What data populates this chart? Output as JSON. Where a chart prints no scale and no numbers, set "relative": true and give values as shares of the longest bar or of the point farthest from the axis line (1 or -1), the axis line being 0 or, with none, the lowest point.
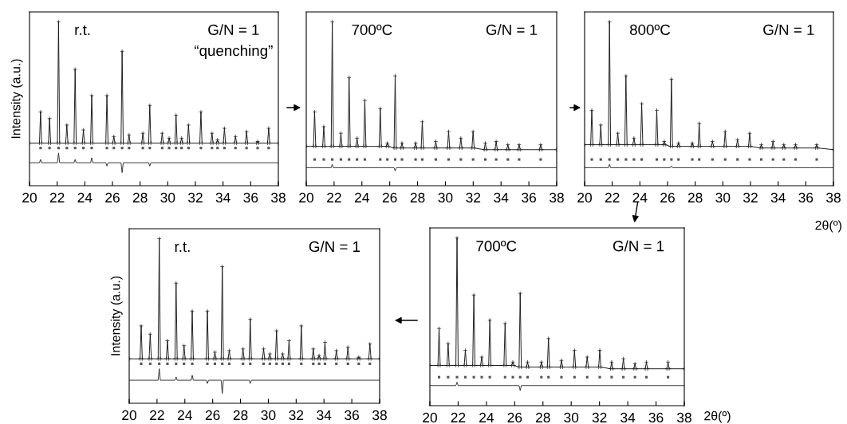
{
  "chart_data": [
    {
      "type": "line",
      "relative": true,
      "ylabel": "Intensity (a.u.)",
      "xlim": [
        20,
        38
      ],
      "xticks": [
        20,
        22,
        24,
        26,
        28,
        30,
        32,
        34,
        36,
        38
      ],
      "tick_labels": "x",
      "annotations": [
        "r.t.",
        "G/N = 1",
        "“quenching”"
      ],
      "series": [
        {
          "type": "line",
          "color": "#1a1a1a",
          "marker": "cross",
          "x": [
            20,
            20.72,
            20.8,
            20.88,
            21.37,
            21.45,
            21.53,
            22.02,
            22.1,
            22.18,
            22.62,
            22.7,
            22.78,
            23.22,
            23.3,
            23.38,
            23.82,
            23.9,
            23.98,
            24.42,
            24.5,
            24.58,
            25.52,
            25.6,
            25.68,
            26.02,
            26.1,
            26.18,
            26.62,
            26.7,
            26.78,
            27.12,
            27.2,
            27.28,
            28.12,
            28.2,
            28.28,
            28.62,
            28.7,
            28.78,
            29.52,
            29.6,
            29.68,
            30.02,
            30.1,
            30.18,
            30.52,
            30.6,
            30.68,
            30.92,
            31.0,
            31.08,
            31.42,
            31.5,
            31.58,
            32.32,
            32.4,
            32.48,
            33.12,
            33.2,
            33.28,
            33.52,
            33.6,
            33.68,
            34.02,
            34.1,
            34.18,
            34.82,
            34.9,
            34.98,
            35.62,
            35.7,
            35.78,
            36.42,
            36.5,
            36.58,
            37.22,
            37.3,
            37.38,
            38
          ],
          "values": [
            0.26,
            0.26,
            0.45,
            0.26,
            0.26,
            0.41,
            0.26,
            0.26,
            1.0,
            0.26,
            0.26,
            0.37,
            0.26,
            0.26,
            0.71,
            0.26,
            0.26,
            0.34,
            0.26,
            0.26,
            0.55,
            0.26,
            0.26,
            0.55,
            0.26,
            0.26,
            0.3,
            0.26,
            0.26,
            0.82,
            0.26,
            0.26,
            0.31,
            0.26,
            0.26,
            0.32,
            0.26,
            0.26,
            0.49,
            0.26,
            0.26,
            0.32,
            0.26,
            0.26,
            0.29,
            0.26,
            0.26,
            0.43,
            0.26,
            0.26,
            0.29,
            0.26,
            0.26,
            0.37,
            0.26,
            0.26,
            0.45,
            0.26,
            0.26,
            0.32,
            0.26,
            0.26,
            0.28,
            0.26,
            0.26,
            0.35,
            0.26,
            0.26,
            0.3,
            0.26,
            0.26,
            0.33,
            0.26,
            0.26,
            0.27,
            0.26,
            0.26,
            0.35,
            0.26,
            0.26
          ]
        },
        {
          "type": "line",
          "color": "#333333",
          "x": [
            20,
            20.72,
            20.8,
            20.88,
            22.02,
            22.1,
            22.18,
            23.22,
            23.3,
            23.38,
            24.42,
            24.5,
            24.58,
            25.52,
            25.6,
            25.68,
            26.62,
            26.7,
            26.78,
            28.62,
            28.7,
            28.78,
            38
          ],
          "values": [
            0.14,
            0.14,
            0.16,
            0.14,
            0.14,
            0.2,
            0.14,
            0.14,
            0.16,
            0.14,
            0.14,
            0.17,
            0.14,
            0.14,
            0.12,
            0.14,
            0.14,
            0.08,
            0.14,
            0.14,
            0.12,
            0.14,
            0.14
          ]
        },
        {
          "type": "scatter",
          "color": "#555555",
          "marker": "square",
          "x": [
            20.8,
            21.45,
            22.1,
            22.7,
            23.3,
            23.9,
            24.5,
            25.6,
            26.1,
            26.7,
            27.2,
            28.2,
            28.7,
            29.6,
            30.1,
            30.6,
            31.0,
            31.5,
            32.4,
            33.2,
            33.6,
            34.1,
            34.9,
            35.7,
            36.5,
            37.3
          ],
          "values": [
            0.23,
            0.23,
            0.23,
            0.23,
            0.23,
            0.23,
            0.23,
            0.23,
            0.23,
            0.23,
            0.23,
            0.23,
            0.23,
            0.23,
            0.23,
            0.23,
            0.23,
            0.23,
            0.23,
            0.23,
            0.23,
            0.23,
            0.23,
            0.23,
            0.23,
            0.23
          ]
        }
      ]
    },
    {
      "type": "line",
      "relative": true,
      "xlim": [
        20,
        38
      ],
      "xticks": [
        20,
        22,
        24,
        26,
        28,
        30,
        32,
        34,
        36,
        38
      ],
      "tick_labels": "x",
      "annotations": [
        "700ºC",
        "G/N = 1"
      ],
      "series": [
        {
          "type": "line",
          "color": "#1a1a1a",
          "marker": "cross",
          "x": [
            20,
            20.52,
            20.6,
            20.68,
            21.18,
            21.26,
            21.34,
            21.79,
            21.87,
            21.95,
            22.41,
            22.49,
            22.57,
            23.0,
            23.08,
            23.16,
            23.57,
            23.65,
            23.73,
            24.13,
            24.21,
            24.29,
            25.24,
            25.32,
            25.4,
            25.75,
            25.83,
            25.91,
            26.31,
            26.39,
            26.47,
            26.8,
            26.88,
            26.96,
            27.78,
            27.86,
            27.94,
            28.26,
            28.34,
            28.42,
            29.23,
            29.31,
            29.39,
            30.15,
            30.23,
            30.31,
            31.03,
            31.11,
            31.19,
            31.91,
            31.99,
            32.07,
            32.79,
            32.87,
            32.95,
            33.57,
            33.65,
            33.73,
            34.41,
            34.49,
            34.57,
            35.22,
            35.3,
            35.38,
            36.77,
            36.85,
            36.93,
            38
          ],
          "values": [
            0.24,
            0.24,
            0.45,
            0.24,
            0.24,
            0.36,
            0.24,
            0.24,
            1.0,
            0.24,
            0.24,
            0.32,
            0.24,
            0.24,
            0.66,
            0.24,
            0.24,
            0.29,
            0.24,
            0.24,
            0.52,
            0.24,
            0.24,
            0.47,
            0.24,
            0.24,
            0.26,
            0.24,
            0.23,
            0.67,
            0.23,
            0.23,
            0.26,
            0.23,
            0.23,
            0.26,
            0.23,
            0.23,
            0.39,
            0.23,
            0.23,
            0.27,
            0.23,
            0.23,
            0.33,
            0.23,
            0.23,
            0.29,
            0.23,
            0.23,
            0.33,
            0.23,
            0.22,
            0.26,
            0.22,
            0.22,
            0.27,
            0.22,
            0.22,
            0.25,
            0.22,
            0.22,
            0.25,
            0.22,
            0.22,
            0.25,
            0.22,
            0.22
          ]
        },
        {
          "type": "line",
          "color": "#333333",
          "x": [
            20,
            21.79,
            21.87,
            21.95,
            26.31,
            26.39,
            26.47,
            38
          ],
          "values": [
            0.11,
            0.11,
            0.13,
            0.11,
            0.11,
            0.09,
            0.11,
            0.11
          ]
        },
        {
          "type": "scatter",
          "color": "#555555",
          "marker": "square",
          "x": [
            20.6,
            21.26,
            21.87,
            22.49,
            23.08,
            23.65,
            24.21,
            25.32,
            25.83,
            26.39,
            26.88,
            27.86,
            28.34,
            29.31,
            30.23,
            31.11,
            31.99,
            32.87,
            33.65,
            34.49,
            35.3,
            36.85
          ],
          "values": [
            0.16,
            0.16,
            0.16,
            0.16,
            0.16,
            0.16,
            0.16,
            0.16,
            0.16,
            0.16,
            0.16,
            0.16,
            0.16,
            0.16,
            0.16,
            0.16,
            0.16,
            0.16,
            0.16,
            0.16,
            0.16,
            0.16
          ]
        }
      ]
    },
    {
      "type": "line",
      "relative": true,
      "xlabel": "2θ(º)",
      "xlim": [
        20,
        38
      ],
      "xticks": [
        20,
        22,
        24,
        26,
        28,
        30,
        32,
        34,
        36,
        38
      ],
      "tick_labels": "x",
      "annotations": [
        "800ºC",
        "G/N = 1"
      ],
      "series": [
        {
          "type": "line",
          "color": "#1a1a1a",
          "marker": "cross",
          "x": [
            20,
            20.44,
            20.52,
            20.6,
            21.09,
            21.17,
            21.25,
            21.72,
            21.8,
            21.88,
            22.32,
            22.4,
            22.48,
            22.91,
            22.99,
            23.07,
            23.49,
            23.57,
            23.65,
            24.05,
            24.13,
            24.21,
            25.14,
            25.22,
            25.3,
            25.68,
            25.76,
            25.84,
            26.2,
            26.28,
            26.36,
            26.71,
            26.79,
            26.87,
            27.71,
            27.79,
            27.87,
            28.21,
            28.29,
            28.37,
            29.17,
            29.25,
            29.33,
            30.09,
            30.17,
            30.25,
            30.98,
            31.06,
            31.14,
            31.86,
            31.94,
            32.02,
            32.7,
            32.78,
            32.86,
            33.55,
            33.63,
            33.71,
            34.33,
            34.41,
            34.49,
            35.18,
            35.26,
            35.34,
            36.71,
            36.79,
            36.87,
            38
          ],
          "values": [
            0.25,
            0.25,
            0.46,
            0.25,
            0.25,
            0.37,
            0.25,
            0.25,
            1.0,
            0.25,
            0.25,
            0.32,
            0.25,
            0.25,
            0.67,
            0.25,
            0.25,
            0.29,
            0.25,
            0.25,
            0.5,
            0.25,
            0.25,
            0.46,
            0.25,
            0.25,
            0.27,
            0.25,
            0.24,
            0.65,
            0.24,
            0.24,
            0.26,
            0.24,
            0.24,
            0.26,
            0.24,
            0.24,
            0.38,
            0.24,
            0.24,
            0.27,
            0.24,
            0.24,
            0.33,
            0.24,
            0.24,
            0.28,
            0.24,
            0.24,
            0.32,
            0.24,
            0.23,
            0.25,
            0.23,
            0.23,
            0.27,
            0.23,
            0.23,
            0.25,
            0.23,
            0.23,
            0.25,
            0.23,
            0.23,
            0.25,
            0.23,
            0.22
          ]
        },
        {
          "type": "line",
          "color": "#333333",
          "x": [
            20,
            21.72,
            21.8,
            21.88,
            26.2,
            26.28,
            26.36,
            38
          ],
          "values": [
            0.11,
            0.11,
            0.13,
            0.11,
            0.11,
            0.12,
            0.11,
            0.11
          ]
        },
        {
          "type": "scatter",
          "color": "#555555",
          "marker": "square",
          "x": [
            20.52,
            21.17,
            21.8,
            22.4,
            22.99,
            23.57,
            24.13,
            25.22,
            25.76,
            26.28,
            26.79,
            27.79,
            28.29,
            29.25,
            30.17,
            31.06,
            31.94,
            32.78,
            33.63,
            34.41,
            35.26,
            36.79
          ],
          "values": [
            0.16,
            0.16,
            0.16,
            0.16,
            0.16,
            0.16,
            0.16,
            0.16,
            0.16,
            0.16,
            0.16,
            0.16,
            0.16,
            0.16,
            0.16,
            0.16,
            0.16,
            0.16,
            0.16,
            0.16,
            0.16,
            0.16
          ]
        }
      ]
    },
    {
      "type": "line",
      "relative": true,
      "ylabel": "Intensity (a.u.)",
      "xlim": [
        20,
        38
      ],
      "xticks": [
        20,
        22,
        24,
        26,
        28,
        30,
        32,
        34,
        36,
        38
      ],
      "tick_labels": "x",
      "annotations": [
        "r.t.",
        "G/N = 1"
      ],
      "series": [
        {
          "type": "line",
          "color": "#1a1a1a",
          "marker": "cross",
          "x": [
            20,
            20.78,
            20.86,
            20.94,
            21.43,
            21.51,
            21.59,
            22.08,
            22.16,
            22.24,
            22.67,
            22.75,
            22.83,
            23.29,
            23.37,
            23.45,
            23.86,
            23.94,
            24.02,
            24.45,
            24.53,
            24.61,
            25.54,
            25.62,
            25.7,
            26.08,
            26.16,
            26.24,
            26.61,
            26.69,
            26.77,
            27.11,
            27.19,
            27.27,
            28.1,
            28.18,
            28.26,
            28.62,
            28.7,
            28.78,
            29.58,
            29.66,
            29.74,
            30.03,
            30.11,
            30.19,
            30.51,
            30.59,
            30.67,
            30.95,
            31.03,
            31.11,
            31.41,
            31.49,
            31.57,
            32.29,
            32.37,
            32.45,
            33.15,
            33.23,
            33.31,
            33.57,
            33.65,
            33.73,
            33.99,
            34.07,
            34.15,
            34.81,
            34.89,
            34.97,
            35.64,
            35.72,
            35.8,
            36.42,
            36.5,
            36.58,
            37.22,
            37.3,
            37.38,
            38
          ],
          "values": [
            0.27,
            0.27,
            0.47,
            0.27,
            0.27,
            0.42,
            0.27,
            0.27,
            1.0,
            0.27,
            0.27,
            0.38,
            0.27,
            0.27,
            0.73,
            0.27,
            0.27,
            0.35,
            0.27,
            0.27,
            0.56,
            0.27,
            0.27,
            0.56,
            0.27,
            0.27,
            0.31,
            0.27,
            0.27,
            0.83,
            0.27,
            0.27,
            0.32,
            0.27,
            0.27,
            0.33,
            0.27,
            0.27,
            0.51,
            0.27,
            0.27,
            0.33,
            0.27,
            0.27,
            0.3,
            0.27,
            0.27,
            0.44,
            0.27,
            0.27,
            0.3,
            0.27,
            0.27,
            0.38,
            0.27,
            0.27,
            0.47,
            0.27,
            0.27,
            0.33,
            0.27,
            0.27,
            0.29,
            0.27,
            0.27,
            0.37,
            0.27,
            0.27,
            0.32,
            0.27,
            0.27,
            0.34,
            0.27,
            0.27,
            0.28,
            0.27,
            0.27,
            0.36,
            0.27,
            0.27
          ]
        },
        {
          "type": "line",
          "color": "#333333",
          "x": [
            20,
            22.08,
            22.16,
            22.24,
            23.29,
            23.37,
            23.45,
            24.45,
            24.53,
            24.61,
            25.54,
            25.62,
            25.7,
            26.61,
            26.69,
            26.77,
            28.62,
            28.7,
            28.78,
            38
          ],
          "values": [
            0.14,
            0.14,
            0.21,
            0.14,
            0.14,
            0.16,
            0.14,
            0.14,
            0.17,
            0.14,
            0.14,
            0.12,
            0.14,
            0.14,
            0.06,
            0.14,
            0.14,
            0.12,
            0.14,
            0.14
          ]
        },
        {
          "type": "scatter",
          "color": "#555555",
          "marker": "square",
          "x": [
            20.86,
            21.51,
            22.16,
            22.75,
            23.37,
            23.94,
            24.53,
            25.62,
            26.16,
            26.69,
            27.19,
            28.18,
            28.7,
            29.66,
            30.11,
            30.59,
            31.03,
            31.49,
            32.37,
            33.23,
            33.65,
            34.07,
            34.89,
            35.72,
            36.5,
            37.3
          ],
          "values": [
            0.24,
            0.24,
            0.24,
            0.24,
            0.24,
            0.24,
            0.24,
            0.24,
            0.24,
            0.24,
            0.24,
            0.24,
            0.24,
            0.24,
            0.24,
            0.24,
            0.24,
            0.24,
            0.24,
            0.24,
            0.24,
            0.24,
            0.24,
            0.24,
            0.24,
            0.24
          ]
        }
      ]
    },
    {
      "type": "line",
      "relative": true,
      "xlabel": "2θ(º)",
      "xlim": [
        20,
        38
      ],
      "xticks": [
        20,
        22,
        24,
        26,
        28,
        30,
        32,
        34,
        36,
        38
      ],
      "tick_labels": "x",
      "annotations": [
        "700ºC",
        "G/N = 1"
      ],
      "series": [
        {
          "type": "line",
          "color": "#1a1a1a",
          "marker": "cross",
          "x": [
            20,
            20.57,
            20.65,
            20.73,
            21.21,
            21.29,
            21.37,
            21.84,
            21.92,
            22.0,
            22.43,
            22.51,
            22.59,
            23.03,
            23.11,
            23.19,
            23.59,
            23.67,
            23.75,
            24.16,
            24.24,
            24.32,
            25.24,
            25.32,
            25.4,
            25.79,
            25.87,
            25.95,
            26.31,
            26.39,
            26.47,
            26.83,
            26.91,
            26.99,
            27.81,
            27.89,
            27.97,
            28.31,
            28.39,
            28.47,
            29.23,
            29.31,
            29.39,
            30.15,
            30.23,
            30.31,
            31.05,
            31.13,
            31.21,
            31.94,
            32.02,
            32.1,
            32.78,
            32.86,
            32.94,
            33.61,
            33.69,
            33.77,
            34.43,
            34.51,
            34.59,
            35.24,
            35.32,
            35.4,
            36.77,
            36.85,
            36.93,
            38
          ],
          "values": [
            0.24,
            0.24,
            0.46,
            0.24,
            0.24,
            0.37,
            0.24,
            0.24,
            1.0,
            0.24,
            0.24,
            0.33,
            0.24,
            0.24,
            0.66,
            0.24,
            0.24,
            0.29,
            0.24,
            0.24,
            0.51,
            0.24,
            0.24,
            0.49,
            0.24,
            0.24,
            0.26,
            0.24,
            0.23,
            0.67,
            0.23,
            0.23,
            0.26,
            0.23,
            0.23,
            0.26,
            0.23,
            0.23,
            0.4,
            0.23,
            0.23,
            0.27,
            0.23,
            0.23,
            0.33,
            0.23,
            0.23,
            0.29,
            0.23,
            0.23,
            0.33,
            0.23,
            0.22,
            0.26,
            0.22,
            0.22,
            0.28,
            0.22,
            0.22,
            0.25,
            0.22,
            0.22,
            0.26,
            0.22,
            0.22,
            0.26,
            0.22,
            0.22
          ]
        },
        {
          "type": "line",
          "color": "#333333",
          "x": [
            20,
            21.84,
            21.92,
            22.0,
            26.31,
            26.39,
            26.47,
            38
          ],
          "values": [
            0.12,
            0.12,
            0.14,
            0.12,
            0.12,
            0.09,
            0.12,
            0.12
          ]
        },
        {
          "type": "scatter",
          "color": "#555555",
          "marker": "square",
          "x": [
            20.65,
            21.29,
            21.92,
            22.51,
            23.11,
            23.67,
            24.24,
            25.32,
            25.87,
            26.39,
            26.91,
            27.89,
            28.39,
            29.31,
            30.23,
            31.13,
            32.02,
            32.86,
            33.69,
            34.51,
            35.32,
            36.85
          ],
          "values": [
            0.17,
            0.17,
            0.17,
            0.17,
            0.17,
            0.17,
            0.17,
            0.17,
            0.17,
            0.17,
            0.17,
            0.17,
            0.17,
            0.17,
            0.17,
            0.17,
            0.17,
            0.17,
            0.17,
            0.17,
            0.17,
            0.17
          ]
        }
      ]
    }
  ]
}
